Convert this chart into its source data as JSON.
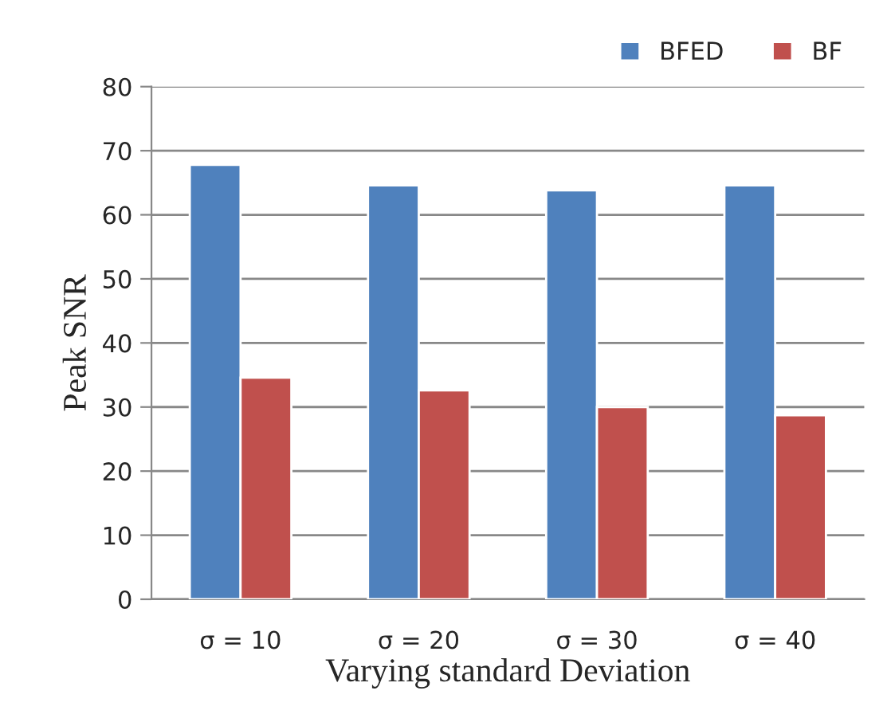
{
  "chart_data": {
    "type": "bar",
    "xlabel": "Varying standard Deviation",
    "ylabel": "Peak SNR",
    "categories": [
      "σ = 10",
      "σ = 20",
      "σ = 30",
      "σ = 40"
    ],
    "series": [
      {
        "name": "BFED",
        "color": "#4f81bd",
        "values": [
          67.8,
          64.6,
          63.8,
          64.6
        ]
      },
      {
        "name": "BF",
        "color": "#c0504d",
        "values": [
          34.6,
          32.6,
          30.0,
          28.7
        ]
      }
    ],
    "ylim": [
      0,
      80
    ],
    "yticks": [
      0,
      10,
      20,
      30,
      40,
      50,
      60,
      70,
      80
    ],
    "grid": "y",
    "legend": "top right"
  }
}
